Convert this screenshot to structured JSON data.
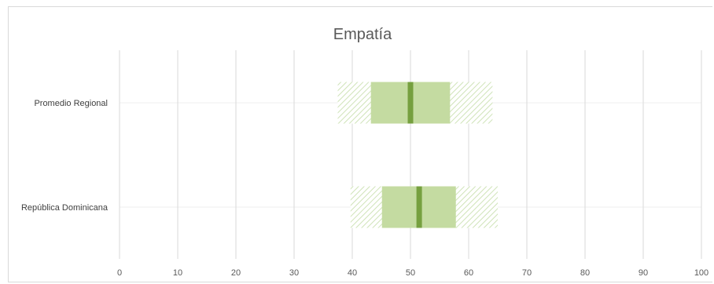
{
  "chart_data": {
    "type": "box",
    "title": "Empatía",
    "xlim": [
      0,
      100
    ],
    "x_ticks": [
      0,
      10,
      20,
      30,
      40,
      50,
      60,
      70,
      80,
      90,
      100
    ],
    "grid": true,
    "categories": [
      "Promedio Regional",
      "República Dominicana"
    ],
    "rows": [
      {
        "label": "Promedio Regional",
        "outer_low": 37.5,
        "inner_low": 43.2,
        "median": 50.0,
        "inner_high": 56.8,
        "outer_high": 64.1
      },
      {
        "label": "República Dominicana",
        "outer_low": 39.7,
        "inner_low": 45.1,
        "median": 51.5,
        "inner_high": 57.8,
        "outer_high": 65.0
      }
    ],
    "colors": {
      "outer_hatch": "#d3e6bf",
      "inner_box": "#c4dba1",
      "median": "#76a03f",
      "grid": "#d9d9d9",
      "title": "#595959"
    }
  }
}
